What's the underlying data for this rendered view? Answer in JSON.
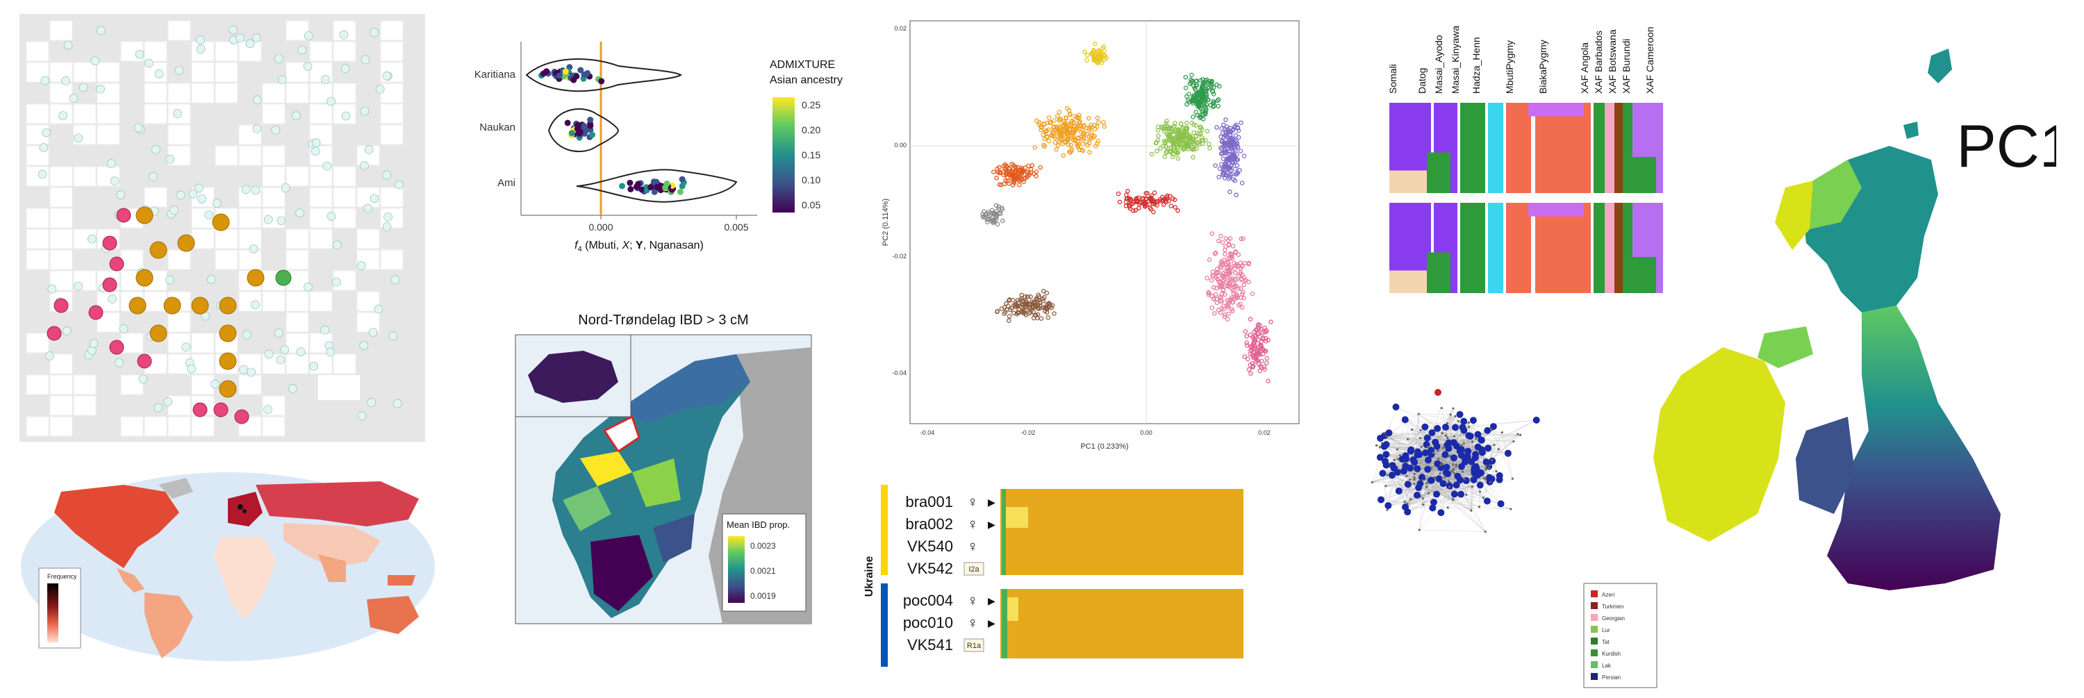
{
  "violin": {
    "groups": [
      "Karitiana",
      "Naukan",
      "Ami"
    ],
    "x_ticks": [
      "0.000",
      "0.005"
    ],
    "x_label_f": "f",
    "x_label_sub": "4",
    "x_label_rest1": " (Mbuti, ",
    "x_label_X": "X",
    "x_label_rest2": "; ",
    "x_label_Y": "Y",
    "x_label_rest3": ", Nganasan)",
    "legend_title_1": "ADMIXTURE",
    "legend_title_2": "Asian ancestry",
    "legend_ticks": [
      "0.25",
      "0.20",
      "0.15",
      "0.10",
      "0.05"
    ]
  },
  "ibd_map": {
    "title": "Nord-Trøndelag IBD > 3 cM",
    "legend_title": "Mean IBD prop.",
    "legend_ticks": [
      "0.0023",
      "0.0021",
      "0.0019"
    ]
  },
  "pca": {
    "xlabel": "PC1 (0.233%)",
    "ylabel": "PC2 (0.114%)",
    "x_ticks": [
      "-0.04",
      "-0.02",
      "0.00",
      "0.02"
    ],
    "y_ticks": [
      "0.02",
      "0.00",
      "-0.02",
      "-0.04"
    ]
  },
  "admixture_bars": {
    "populations": [
      "Somali",
      "Datog",
      "Masai_Ayodo",
      "Masai_Kinyawa",
      "Hadza_Henn",
      "MbutiPygmy",
      "BiakaPygmy",
      "XAF Angola",
      "XAF Barbados",
      "XAF Botswana",
      "XAF Burundi",
      "XAF Cameroon"
    ]
  },
  "ukraine_chart": {
    "region_label": "Ukraine",
    "samples": [
      {
        "id": "bra001",
        "sex": "♀",
        "arrow": "▶",
        "tag": ""
      },
      {
        "id": "bra002",
        "sex": "♀",
        "arrow": "▶",
        "tag": ""
      },
      {
        "id": "VK540",
        "sex": "♀",
        "arrow": "",
        "tag": ""
      },
      {
        "id": "VK542",
        "sex": "",
        "arrow": "",
        "tag": "I2a"
      },
      {
        "id": "poc004",
        "sex": "♀",
        "arrow": "▶",
        "tag": ""
      },
      {
        "id": "poc010",
        "sex": "♀",
        "arrow": "▶",
        "tag": ""
      },
      {
        "id": "VK541",
        "sex": "",
        "arrow": "",
        "tag": "R1a"
      }
    ]
  },
  "uk_map": {
    "label": "PC1"
  },
  "network": {
    "legend": [
      {
        "name": "Azeri",
        "color": "#c62828"
      },
      {
        "name": "Turkmen",
        "color": "#8e1f1f"
      },
      {
        "name": "Georgian",
        "color": "#f4a7b9"
      },
      {
        "name": "Lur",
        "color": "#8bc34a"
      },
      {
        "name": "Tat",
        "color": "#2e7d32"
      },
      {
        "name": "Kurdish",
        "color": "#388e3c"
      },
      {
        "name": "Lak",
        "color": "#66bb6a"
      },
      {
        "name": "Persian",
        "color": "#1a237e"
      }
    ]
  },
  "world_map": {
    "legend_title": "Frequency"
  }
}
